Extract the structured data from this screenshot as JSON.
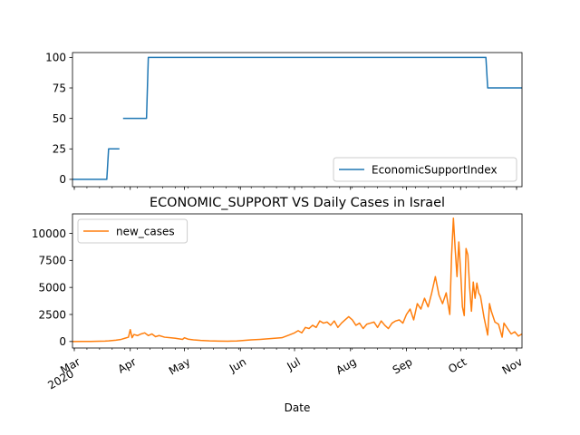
{
  "chart_data": [
    {
      "type": "line",
      "title": "",
      "xlabel": "",
      "ylabel": "",
      "ylim": [
        -6,
        104
      ],
      "yticks": [
        0,
        25,
        50,
        75,
        100
      ],
      "legend": {
        "position": "lower-right"
      },
      "grid": false,
      "series": [
        {
          "name": "EconomicSupportIndex",
          "color": "#1f77b4",
          "segments": [
            [
              [
                "2020-02-29",
                0
              ],
              [
                "2020-03-19",
                0
              ],
              [
                "2020-03-20",
                25
              ],
              [
                "2020-03-26",
                25
              ]
            ],
            [
              [
                "2020-03-28",
                50
              ],
              [
                "2020-04-10",
                50
              ],
              [
                "2020-04-11",
                100
              ],
              [
                "2020-10-15",
                100
              ],
              [
                "2020-10-16",
                75
              ],
              [
                "2020-11-04",
                75
              ]
            ]
          ]
        }
      ]
    },
    {
      "type": "line",
      "title": "ECONOMIC_SUPPORT VS Daily Cases in Israel",
      "xlabel": "Date",
      "ylabel": "",
      "ylim": [
        -600,
        11800
      ],
      "yticks": [
        0,
        2500,
        5000,
        7500,
        10000
      ],
      "legend": {
        "position": "upper-left"
      },
      "grid": false,
      "series": [
        {
          "name": "new_cases",
          "color": "#ff7f0e",
          "points": [
            [
              "2020-02-29",
              0
            ],
            [
              "2020-03-05",
              5
            ],
            [
              "2020-03-10",
              10
            ],
            [
              "2020-03-15",
              30
            ],
            [
              "2020-03-18",
              40
            ],
            [
              "2020-03-20",
              60
            ],
            [
              "2020-03-24",
              120
            ],
            [
              "2020-03-27",
              200
            ],
            [
              "2020-03-29",
              300
            ],
            [
              "2020-03-31",
              400
            ],
            [
              "2020-04-01",
              1100
            ],
            [
              "2020-04-02",
              350
            ],
            [
              "2020-04-03",
              650
            ],
            [
              "2020-04-05",
              550
            ],
            [
              "2020-04-07",
              700
            ],
            [
              "2020-04-09",
              800
            ],
            [
              "2020-04-11",
              550
            ],
            [
              "2020-04-13",
              700
            ],
            [
              "2020-04-15",
              450
            ],
            [
              "2020-04-17",
              550
            ],
            [
              "2020-04-20",
              400
            ],
            [
              "2020-04-23",
              350
            ],
            [
              "2020-04-26",
              300
            ],
            [
              "2020-04-28",
              250
            ],
            [
              "2020-04-30",
              200
            ],
            [
              "2020-05-01",
              350
            ],
            [
              "2020-05-03",
              220
            ],
            [
              "2020-05-06",
              150
            ],
            [
              "2020-05-10",
              100
            ],
            [
              "2020-05-15",
              60
            ],
            [
              "2020-05-20",
              40
            ],
            [
              "2020-05-25",
              30
            ],
            [
              "2020-05-30",
              50
            ],
            [
              "2020-06-03",
              100
            ],
            [
              "2020-06-07",
              150
            ],
            [
              "2020-06-12",
              200
            ],
            [
              "2020-06-16",
              250
            ],
            [
              "2020-06-20",
              300
            ],
            [
              "2020-06-24",
              350
            ],
            [
              "2020-06-28",
              600
            ],
            [
              "2020-07-01",
              800
            ],
            [
              "2020-07-03",
              1000
            ],
            [
              "2020-07-05",
              800
            ],
            [
              "2020-07-07",
              1300
            ],
            [
              "2020-07-09",
              1200
            ],
            [
              "2020-07-11",
              1500
            ],
            [
              "2020-07-13",
              1300
            ],
            [
              "2020-07-15",
              1900
            ],
            [
              "2020-07-17",
              1700
            ],
            [
              "2020-07-19",
              1800
            ],
            [
              "2020-07-21",
              1500
            ],
            [
              "2020-07-23",
              1900
            ],
            [
              "2020-07-25",
              1300
            ],
            [
              "2020-07-27",
              1700
            ],
            [
              "2020-07-29",
              2000
            ],
            [
              "2020-07-31",
              2300
            ],
            [
              "2020-08-02",
              2000
            ],
            [
              "2020-08-04",
              1500
            ],
            [
              "2020-08-06",
              1700
            ],
            [
              "2020-08-08",
              1200
            ],
            [
              "2020-08-10",
              1600
            ],
            [
              "2020-08-12",
              1700
            ],
            [
              "2020-08-14",
              1800
            ],
            [
              "2020-08-16",
              1300
            ],
            [
              "2020-08-18",
              1900
            ],
            [
              "2020-08-20",
              1500
            ],
            [
              "2020-08-22",
              1200
            ],
            [
              "2020-08-24",
              1700
            ],
            [
              "2020-08-26",
              1900
            ],
            [
              "2020-08-28",
              2000
            ],
            [
              "2020-08-30",
              1700
            ],
            [
              "2020-09-01",
              2500
            ],
            [
              "2020-09-03",
              3000
            ],
            [
              "2020-09-05",
              2000
            ],
            [
              "2020-09-07",
              3500
            ],
            [
              "2020-09-09",
              3000
            ],
            [
              "2020-09-11",
              4000
            ],
            [
              "2020-09-13",
              3200
            ],
            [
              "2020-09-15",
              4500
            ],
            [
              "2020-09-17",
              6000
            ],
            [
              "2020-09-19",
              4300
            ],
            [
              "2020-09-21",
              3500
            ],
            [
              "2020-09-23",
              4500
            ],
            [
              "2020-09-25",
              2500
            ],
            [
              "2020-09-26",
              8000
            ],
            [
              "2020-09-27",
              11400
            ],
            [
              "2020-09-28",
              8500
            ],
            [
              "2020-09-29",
              6000
            ],
            [
              "2020-09-30",
              9200
            ],
            [
              "2020-10-01",
              6500
            ],
            [
              "2020-10-02",
              3200
            ],
            [
              "2020-10-03",
              2400
            ],
            [
              "2020-10-04",
              8600
            ],
            [
              "2020-10-05",
              8000
            ],
            [
              "2020-10-06",
              5000
            ],
            [
              "2020-10-07",
              2800
            ],
            [
              "2020-10-08",
              5500
            ],
            [
              "2020-10-09",
              4000
            ],
            [
              "2020-10-10",
              5400
            ],
            [
              "2020-10-11",
              4500
            ],
            [
              "2020-10-12",
              4200
            ],
            [
              "2020-10-14",
              2200
            ],
            [
              "2020-10-15",
              1400
            ],
            [
              "2020-10-16",
              600
            ],
            [
              "2020-10-17",
              3500
            ],
            [
              "2020-10-18",
              2800
            ],
            [
              "2020-10-20",
              1800
            ],
            [
              "2020-10-22",
              1600
            ],
            [
              "2020-10-24",
              400
            ],
            [
              "2020-10-25",
              1700
            ],
            [
              "2020-10-27",
              1200
            ],
            [
              "2020-10-29",
              700
            ],
            [
              "2020-10-31",
              900
            ],
            [
              "2020-11-02",
              500
            ],
            [
              "2020-11-04",
              700
            ]
          ]
        }
      ]
    }
  ],
  "x_axis": {
    "xlim": [
      "2020-02-29",
      "2020-11-04"
    ],
    "major_ticks": [
      {
        "date": "2020-03-01",
        "label": "Mar",
        "sublabel": "2020"
      },
      {
        "date": "2020-04-01",
        "label": "Apr",
        "sublabel": ""
      },
      {
        "date": "2020-05-01",
        "label": "May",
        "sublabel": ""
      },
      {
        "date": "2020-06-01",
        "label": "Jun",
        "sublabel": ""
      },
      {
        "date": "2020-07-01",
        "label": "Jul",
        "sublabel": ""
      },
      {
        "date": "2020-08-01",
        "label": "Aug",
        "sublabel": ""
      },
      {
        "date": "2020-09-01",
        "label": "Sep",
        "sublabel": ""
      },
      {
        "date": "2020-10-01",
        "label": "Oct",
        "sublabel": ""
      },
      {
        "date": "2020-11-01",
        "label": "Nov",
        "sublabel": ""
      }
    ]
  }
}
